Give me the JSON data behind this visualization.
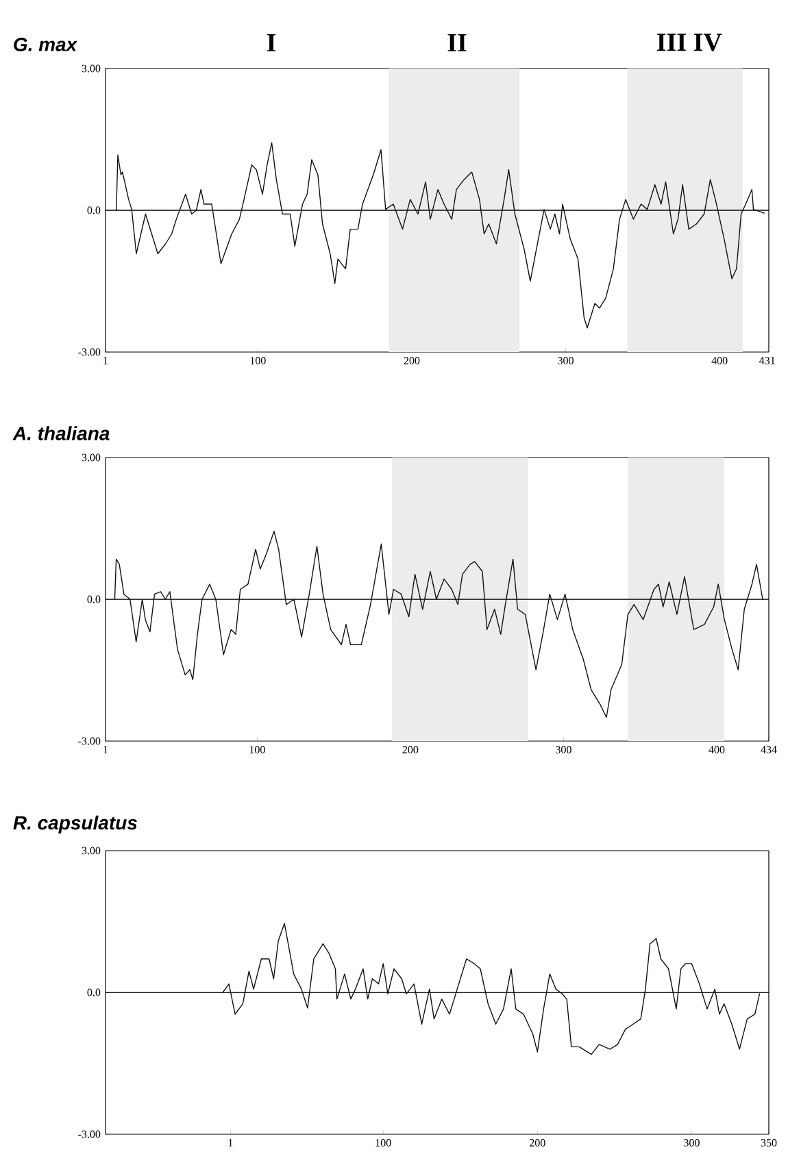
{
  "chart_data": [
    {
      "type": "line",
      "title": "G. max",
      "annotations": [
        "I",
        "II",
        "III IV"
      ],
      "xlim": [
        1,
        432
      ],
      "xticks": [
        1,
        100,
        200,
        300,
        400,
        431
      ],
      "ylim": [
        -3,
        3
      ],
      "yticks": [
        {
          "value": -3,
          "label": "-3.00"
        },
        {
          "value": 0,
          "label": "0.0"
        },
        {
          "value": 3,
          "label": "3.00"
        }
      ],
      "ref_lines": [
        {
          "axis": "y",
          "value": 0,
          "color": "#000000"
        }
      ],
      "bands": [
        {
          "axis": "x",
          "from": 185,
          "to": 270,
          "color": "#ececec"
        },
        {
          "axis": "x",
          "from": 340,
          "to": 415,
          "color": "#ececec"
        }
      ],
      "series": [
        {
          "color": "#111111",
          "x": [
            8,
            9,
            11,
            12,
            16,
            18,
            21,
            27,
            31,
            35,
            40,
            44,
            47,
            53,
            57,
            60,
            63,
            65,
            70,
            76,
            83,
            88,
            91,
            96,
            99,
            103,
            106,
            109,
            112,
            116,
            121,
            124,
            129,
            132,
            135,
            139,
            142,
            147,
            150,
            152,
            157,
            160,
            165,
            168,
            175,
            180,
            183,
            188,
            194,
            199,
            204,
            209,
            212,
            217,
            221,
            226,
            229,
            234,
            239,
            244,
            247,
            250,
            255,
            260,
            263,
            267,
            273,
            277,
            281,
            286,
            290,
            293,
            296,
            298,
            303,
            308,
            312,
            314,
            319,
            322,
            326,
            331,
            335,
            339,
            344,
            349,
            353,
            358,
            362,
            365,
            370,
            373,
            376,
            380,
            385,
            390,
            394,
            398,
            403,
            408,
            411,
            414,
            417,
            421,
            422,
            429
          ],
          "values": [
            0,
            1.17,
            0.75,
            0.81,
            0.23,
            0.02,
            -0.92,
            -0.08,
            -0.5,
            -0.92,
            -0.71,
            -0.5,
            -0.19,
            0.34,
            -0.08,
            0,
            0.44,
            0.13,
            0.13,
            -1.13,
            -0.5,
            -0.19,
            0.23,
            0.96,
            0.86,
            0.34,
            0.96,
            1.43,
            0.65,
            -0.08,
            -0.08,
            -0.76,
            0.13,
            0.34,
            1.07,
            0.75,
            -0.29,
            -0.92,
            -1.55,
            -1.03,
            -1.24,
            -0.4,
            -0.4,
            0.13,
            0.75,
            1.28,
            0.02,
            0.13,
            -0.4,
            0.23,
            -0.08,
            0.6,
            -0.19,
            0.44,
            0.13,
            -0.19,
            0.44,
            0.65,
            0.81,
            0.23,
            -0.5,
            -0.29,
            -0.71,
            0.23,
            0.86,
            -0.08,
            -0.82,
            -1.5,
            -0.82,
            0.02,
            -0.4,
            -0.08,
            -0.5,
            0.13,
            -0.61,
            -1.03,
            -2.28,
            -2.49,
            -1.97,
            -2.07,
            -1.86,
            -1.24,
            -0.19,
            0.23,
            -0.19,
            0.13,
            0.02,
            0.54,
            0.13,
            0.6,
            -0.5,
            -0.19,
            0.54,
            -0.4,
            -0.29,
            -0.08,
            0.65,
            0.13,
            -0.61,
            -1.45,
            -1.24,
            -0.08,
            0.13,
            0.44,
            0.02,
            -0.06
          ]
        }
      ]
    },
    {
      "type": "line",
      "title": "A. thaliana",
      "xlim": [
        1,
        434
      ],
      "xticks": [
        1,
        100,
        200,
        300,
        400,
        434
      ],
      "ylim": [
        -3,
        3
      ],
      "yticks": [
        {
          "value": -3,
          "label": "-3.00"
        },
        {
          "value": 0,
          "label": "0.0"
        },
        {
          "value": 3,
          "label": "3.00"
        }
      ],
      "ref_lines": [
        {
          "axis": "y",
          "value": 0,
          "color": "#000000"
        }
      ],
      "bands": [
        {
          "axis": "x",
          "from": 188,
          "to": 277,
          "color": "#ececec"
        },
        {
          "axis": "x",
          "from": 342,
          "to": 405,
          "color": "#ececec"
        }
      ],
      "series": [
        {
          "color": "#111111",
          "x": [
            7,
            8,
            10,
            13,
            17,
            21,
            25,
            27,
            30,
            33,
            37,
            40,
            43,
            48,
            53,
            56,
            58,
            61,
            64,
            69,
            73,
            78,
            83,
            86,
            89,
            94,
            99,
            102,
            106,
            111,
            114,
            119,
            124,
            129,
            134,
            139,
            143,
            148,
            155,
            158,
            161,
            168,
            174,
            181,
            186,
            189,
            194,
            199,
            203,
            208,
            213,
            217,
            222,
            227,
            231,
            234,
            239,
            242,
            247,
            250,
            255,
            259,
            262,
            267,
            270,
            275,
            282,
            287,
            291,
            296,
            301,
            306,
            313,
            318,
            324,
            328,
            331,
            338,
            342,
            346,
            352,
            359,
            362,
            365,
            369,
            374,
            379,
            385,
            392,
            398,
            401,
            405,
            410,
            414,
            418,
            423,
            426,
            430
          ],
          "values": [
            0,
            0.85,
            0.74,
            0.11,
            0,
            -0.9,
            0,
            -0.43,
            -0.69,
            0.11,
            0.16,
            0,
            0.16,
            -1.06,
            -1.6,
            -1.49,
            -1.7,
            -0.74,
            0,
            0.32,
            0,
            -1.17,
            -0.64,
            -0.74,
            0.21,
            0.32,
            1.06,
            0.64,
            0.96,
            1.44,
            1.06,
            -0.11,
            0,
            -0.8,
            0.11,
            1.12,
            0.11,
            -0.64,
            -0.96,
            -0.53,
            -0.96,
            -0.96,
            -0.11,
            1.17,
            -0.32,
            0.21,
            0.11,
            -0.37,
            0.53,
            -0.21,
            0.59,
            0,
            0.43,
            0.21,
            -0.11,
            0.53,
            0.74,
            0.8,
            0.59,
            -0.64,
            -0.21,
            -0.74,
            -0.11,
            0.85,
            -0.21,
            -0.32,
            -1.49,
            -0.64,
            0.11,
            -0.43,
            0.11,
            -0.64,
            -1.28,
            -1.91,
            -2.23,
            -2.5,
            -1.91,
            -1.38,
            -0.32,
            -0.11,
            -0.43,
            0.21,
            0.32,
            -0.16,
            0.37,
            -0.32,
            0.48,
            -0.64,
            -0.53,
            -0.16,
            0.32,
            -0.43,
            -1.06,
            -1.49,
            -0.21,
            0.32,
            0.74,
            0
          ]
        }
      ]
    },
    {
      "type": "line",
      "title": "R. capsulatus",
      "xlim": [
        -80,
        350
      ],
      "xticks": [
        1,
        100,
        200,
        300,
        350
      ],
      "ylim": [
        -3,
        3
      ],
      "yticks": [
        {
          "value": -3,
          "label": "-3.00"
        },
        {
          "value": 0,
          "label": "0.0"
        },
        {
          "value": 3,
          "label": "3.00"
        }
      ],
      "ref_lines": [
        {
          "axis": "y",
          "value": 0,
          "color": "#000000"
        }
      ],
      "series": [
        {
          "color": "#111111",
          "x": [
            -4,
            0,
            4,
            9,
            13,
            16,
            21,
            26,
            29,
            32,
            36,
            39,
            42,
            47,
            51,
            55,
            61,
            65,
            69,
            70,
            75,
            79,
            82,
            87,
            90,
            93,
            97,
            100,
            103,
            107,
            112,
            115,
            120,
            125,
            130,
            133,
            138,
            143,
            148,
            154,
            159,
            163,
            168,
            173,
            178,
            183,
            186,
            191,
            197,
            200,
            204,
            208,
            212,
            216,
            219,
            222,
            227,
            235,
            240,
            247,
            252,
            257,
            262,
            267,
            270,
            273,
            277,
            280,
            285,
            290,
            293,
            296,
            300,
            305,
            310,
            315,
            318,
            321,
            326,
            331,
            336,
            341,
            344
          ],
          "values": [
            0,
            0.18,
            -0.46,
            -0.24,
            0.45,
            0.07,
            0.71,
            0.71,
            0.29,
            1.09,
            1.46,
            0.93,
            0.39,
            0.07,
            -0.33,
            0.71,
            1.03,
            0.82,
            0.5,
            -0.14,
            0.39,
            -0.14,
            0.07,
            0.5,
            -0.14,
            0.29,
            0.18,
            0.61,
            -0.03,
            0.5,
            0.29,
            -0.03,
            0.18,
            -0.67,
            0.07,
            -0.56,
            -0.14,
            -0.46,
            0.07,
            0.71,
            0.61,
            0.5,
            -0.24,
            -0.67,
            -0.35,
            0.5,
            -0.35,
            -0.46,
            -0.88,
            -1.26,
            -0.35,
            0.39,
            0.07,
            -0.03,
            -0.14,
            -1.15,
            -1.15,
            -1.31,
            -1.1,
            -1.2,
            -1.1,
            -0.78,
            -0.67,
            -0.56,
            0.07,
            1.03,
            1.14,
            0.71,
            0.5,
            -0.35,
            0.5,
            0.61,
            0.61,
            0.18,
            -0.35,
            0.07,
            -0.46,
            -0.24,
            -0.67,
            -1.2,
            -0.56,
            -0.46,
            -0.03
          ]
        }
      ]
    }
  ]
}
